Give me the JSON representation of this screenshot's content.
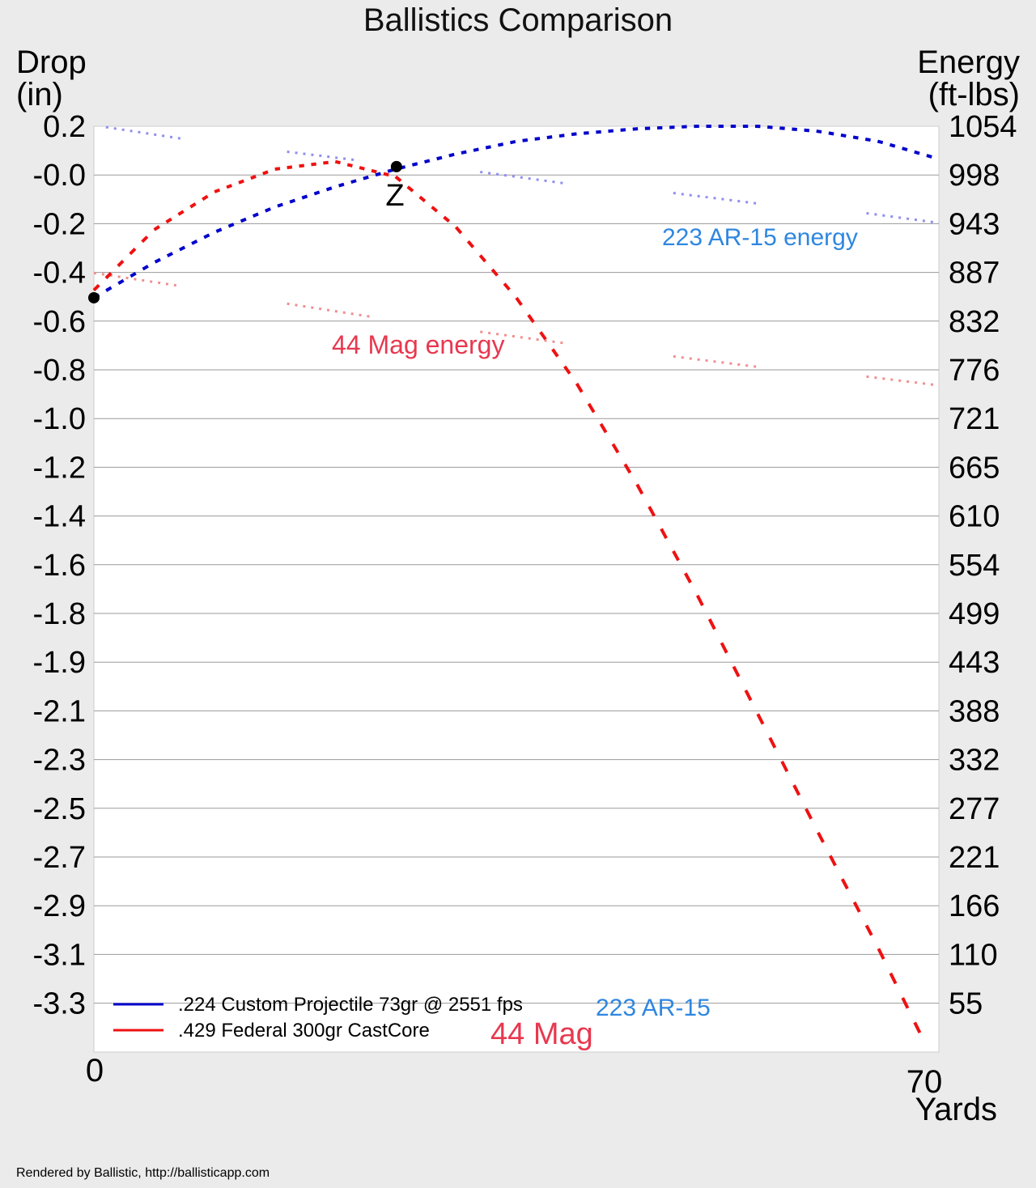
{
  "chart_data": {
    "type": "line",
    "title": "Ballistics Comparison",
    "left_axis": {
      "label_line1": "Drop",
      "label_line2": "(in)",
      "ticks": [
        "0.2",
        "-0.0",
        "-0.2",
        "-0.4",
        "-0.6",
        "-0.8",
        "-1.0",
        "-1.2",
        "-1.4",
        "-1.6",
        "-1.8",
        "-1.9",
        "-2.1",
        "-2.3",
        "-2.5",
        "-2.7",
        "-2.9",
        "-3.1",
        "-3.3"
      ],
      "range": [
        -3.47,
        0.2
      ]
    },
    "right_axis": {
      "label_line1": "Energy",
      "label_line2": "(ft-lbs)",
      "ticks": [
        "1054",
        "998",
        "943",
        "887",
        "832",
        "776",
        "721",
        "665",
        "610",
        "554",
        "499",
        "443",
        "388",
        "332",
        "277",
        "221",
        "166",
        "110",
        "55"
      ],
      "range": [
        0,
        1054
      ]
    },
    "x_axis": {
      "tick_start": "0",
      "tick_end": "70",
      "label": "Yards",
      "range": [
        0,
        70
      ]
    },
    "grid": true,
    "legend_placement": "bottom-left",
    "series": [
      {
        "name": ".224 Custom Projectile 73gr @ 2551 fps",
        "short_label": "223 AR-15",
        "color": "#0000cc",
        "label_color": "#2f87e0",
        "x": [
          0,
          5,
          10,
          15,
          20,
          25,
          30,
          35,
          40,
          45,
          50,
          55,
          60,
          65,
          70
        ],
        "drop": [
          -0.48,
          -0.34,
          -0.22,
          -0.12,
          -0.04,
          0.03,
          0.09,
          0.14,
          0.17,
          0.19,
          0.2,
          0.2,
          0.18,
          0.14,
          0.07
        ]
      },
      {
        "name": ".429 Federal 300gr CastCore",
        "short_label": "44 Mag",
        "color": "#ee1111",
        "label_color": "#e8384f",
        "x": [
          0,
          5,
          10,
          15,
          20,
          25,
          30,
          35,
          40,
          45,
          50,
          55,
          60,
          65,
          69
        ],
        "drop": [
          -0.45,
          -0.21,
          -0.06,
          0.03,
          0.06,
          0.0,
          -0.2,
          -0.48,
          -0.82,
          -1.22,
          -1.66,
          -2.13,
          -2.6,
          -3.06,
          -3.45
        ]
      }
    ],
    "energy_series": [
      {
        "name": "223 AR-15 energy",
        "color": "#8f8ff0",
        "label_color": "#2f87e0",
        "segments": [
          {
            "x0": 1,
            "x1": 7.2,
            "e0": 1053,
            "e1": 1040
          },
          {
            "x0": 16,
            "x1": 22,
            "e0": 1025,
            "e1": 1015
          },
          {
            "x0": 32,
            "x1": 39,
            "e0": 1002,
            "e1": 989
          },
          {
            "x0": 48,
            "x1": 55,
            "e0": 978,
            "e1": 966
          },
          {
            "x0": 64,
            "x1": 70,
            "e0": 955,
            "e1": 944
          }
        ]
      },
      {
        "name": "44 Mag energy",
        "color": "#f08f8f",
        "label_color": "#e8384f",
        "segments": [
          {
            "x0": 0,
            "x1": 7.2,
            "e0": 887,
            "e1": 872
          },
          {
            "x0": 16,
            "x1": 23,
            "e0": 852,
            "e1": 837
          },
          {
            "x0": 32,
            "x1": 39,
            "e0": 820,
            "e1": 807
          },
          {
            "x0": 48,
            "x1": 55,
            "e0": 792,
            "e1": 780
          },
          {
            "x0": 64,
            "x1": 70,
            "e0": 769,
            "e1": 759
          }
        ]
      }
    ],
    "annotations": {
      "zero_marker_label": "Z",
      "zero_marker": {
        "x": 25,
        "drop": 0.04
      },
      "muzzle_marker": {
        "x": 0,
        "drop": -0.48
      }
    }
  },
  "footer": "Rendered by Ballistic, http://ballisticapp.com"
}
